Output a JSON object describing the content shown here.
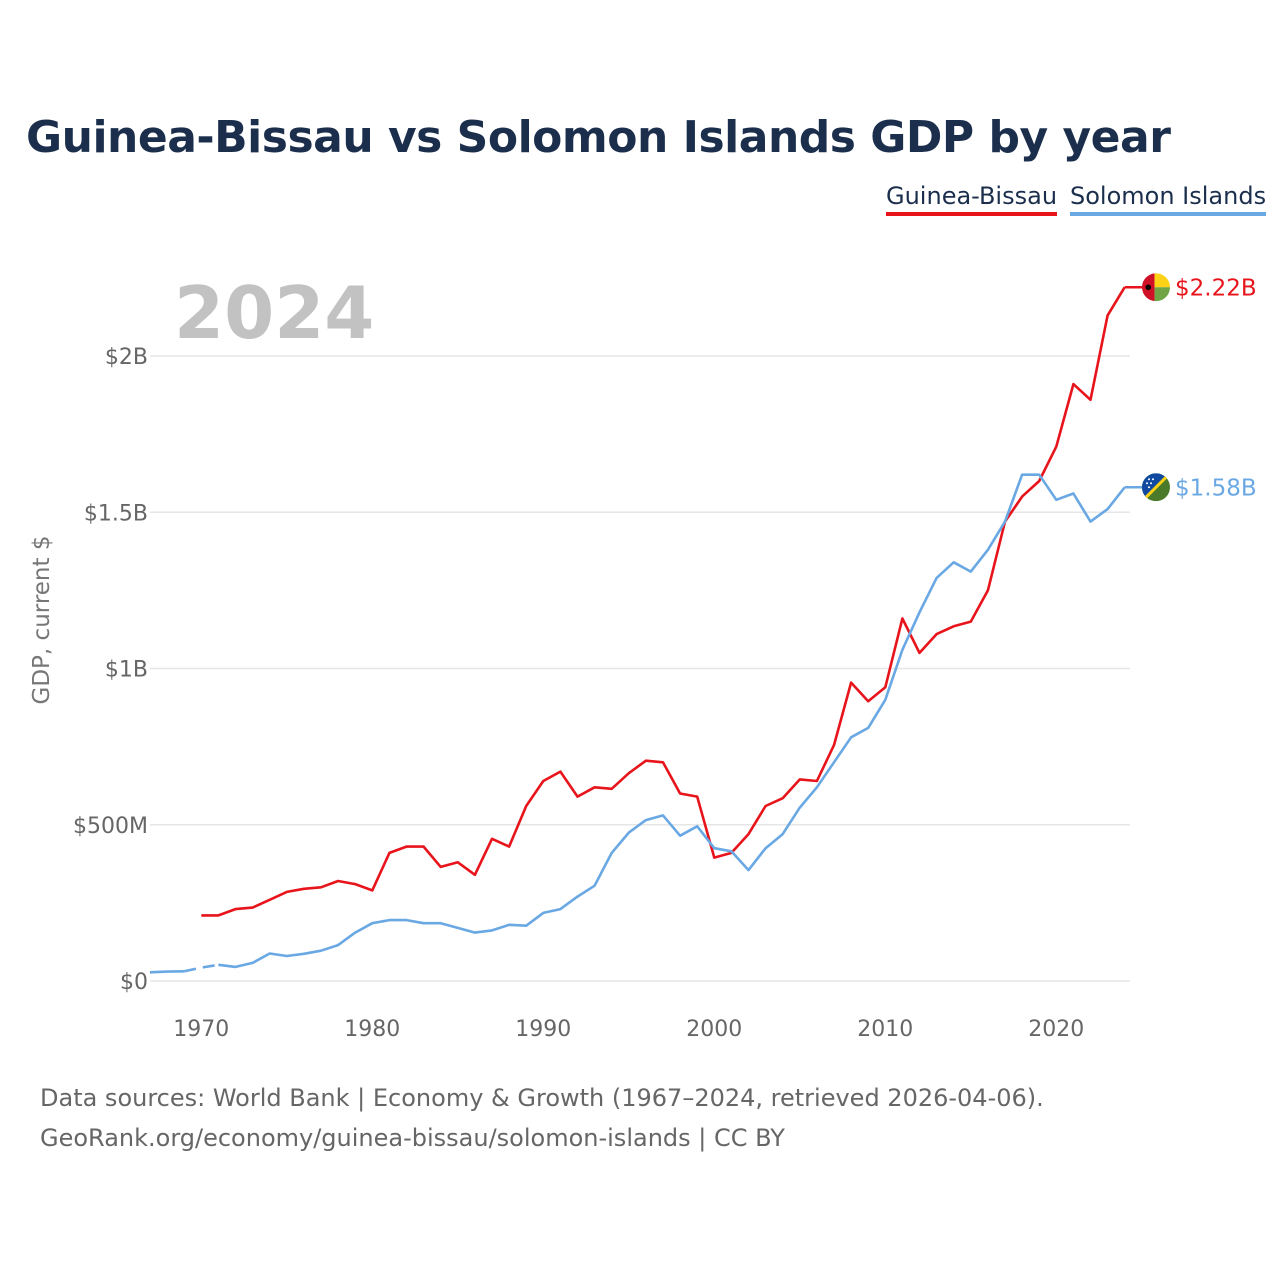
{
  "title": "Guinea-Bissau vs Solomon Islands GDP by year",
  "ylabel": "GDP, current $",
  "year_display": "2024",
  "legend": [
    {
      "name": "Guinea-Bissau",
      "color": "#e8141b"
    },
    {
      "name": "Solomon Islands",
      "color": "#6aa8e4"
    }
  ],
  "source_line1": "Data sources: World Bank | Economy & Growth (1967–2024, retrieved 2026-04-06).",
  "source_line2": "GeoRank.org/economy/guinea-bissau/solomon-islands | CC BY",
  "chart_data": {
    "type": "line",
    "title": "Guinea-Bissau vs Solomon Islands GDP by year",
    "xlabel": "",
    "ylabel": "GDP, current $",
    "xlim": [
      1967,
      2024
    ],
    "ylim": [
      0,
      2.22
    ],
    "y_unit": "billion USD",
    "x_ticks": [
      1970,
      1980,
      1990,
      2000,
      2010,
      2020
    ],
    "y_ticks": [
      {
        "value": 0,
        "label": "$0"
      },
      {
        "value": 0.5,
        "label": "$500M"
      },
      {
        "value": 1.0,
        "label": "$1B"
      },
      {
        "value": 1.5,
        "label": "$1.5B"
      },
      {
        "value": 2.0,
        "label": "$2B"
      }
    ],
    "grid": true,
    "series": [
      {
        "name": "Guinea-Bissau",
        "color": "#e8141b",
        "end_label": "$2.22B",
        "flag": "guinea-bissau-flag",
        "x": [
          1970,
          1971,
          1972,
          1973,
          1974,
          1975,
          1976,
          1977,
          1978,
          1979,
          1980,
          1981,
          1982,
          1983,
          1984,
          1985,
          1986,
          1987,
          1988,
          1989,
          1990,
          1991,
          1992,
          1993,
          1994,
          1995,
          1996,
          1997,
          1998,
          1999,
          2000,
          2001,
          2002,
          2003,
          2004,
          2005,
          2006,
          2007,
          2008,
          2009,
          2010,
          2011,
          2012,
          2013,
          2014,
          2015,
          2016,
          2017,
          2018,
          2019,
          2020,
          2021,
          2022,
          2023,
          2024
        ],
        "values": [
          0.21,
          0.21,
          0.23,
          0.235,
          0.26,
          0.285,
          0.295,
          0.3,
          0.32,
          0.31,
          0.29,
          0.41,
          0.43,
          0.43,
          0.365,
          0.38,
          0.34,
          0.455,
          0.43,
          0.56,
          0.64,
          0.67,
          0.59,
          0.62,
          0.615,
          0.665,
          0.705,
          0.7,
          0.6,
          0.59,
          0.395,
          0.41,
          0.47,
          0.56,
          0.585,
          0.645,
          0.64,
          0.755,
          0.955,
          0.895,
          0.94,
          1.16,
          1.05,
          1.11,
          1.135,
          1.15,
          1.25,
          1.47,
          1.55,
          1.6,
          1.71,
          1.91,
          1.86,
          2.13,
          2.22
        ]
      },
      {
        "name": "Solomon Islands",
        "color": "#6aa8e4",
        "end_label": "$1.58B",
        "flag": "solomon-islands-flag",
        "x": [
          1967,
          1968,
          1969,
          1970,
          1971,
          1972,
          1973,
          1974,
          1975,
          1976,
          1977,
          1978,
          1979,
          1980,
          1981,
          1982,
          1983,
          1984,
          1985,
          1986,
          1987,
          1988,
          1989,
          1990,
          1991,
          1992,
          1993,
          1994,
          1995,
          1996,
          1997,
          1998,
          1999,
          2000,
          2001,
          2002,
          2003,
          2004,
          2005,
          2006,
          2007,
          2008,
          2009,
          2010,
          2011,
          2012,
          2013,
          2014,
          2015,
          2016,
          2017,
          2018,
          2019,
          2020,
          2021,
          2022,
          2023,
          2024
        ],
        "values": [
          0.028,
          0.03,
          0.031,
          0.043,
          0.052,
          0.045,
          0.058,
          0.088,
          0.08,
          0.087,
          0.097,
          0.115,
          0.155,
          0.185,
          0.195,
          0.195,
          0.185,
          0.185,
          0.17,
          0.155,
          0.162,
          0.18,
          0.177,
          0.218,
          0.23,
          0.27,
          0.305,
          0.41,
          0.475,
          0.515,
          0.53,
          0.465,
          0.495,
          0.425,
          0.415,
          0.355,
          0.425,
          0.47,
          0.555,
          0.62,
          0.7,
          0.78,
          0.81,
          0.9,
          1.06,
          1.18,
          1.29,
          1.34,
          1.31,
          1.38,
          1.47,
          1.62,
          1.62,
          1.54,
          1.56,
          1.47,
          1.51,
          1.58
        ],
        "dashed_segment": [
          1969,
          1971
        ]
      }
    ]
  }
}
